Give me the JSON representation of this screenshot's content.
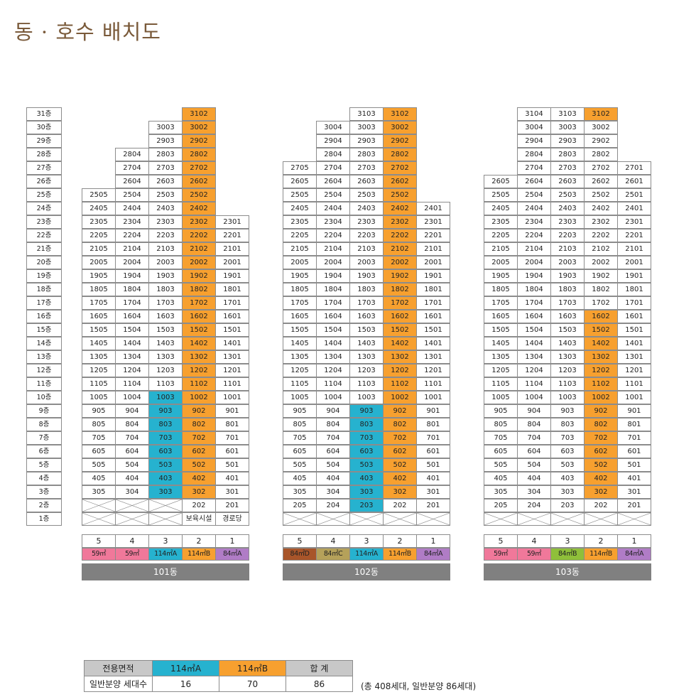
{
  "title": "동 · 호수 배치도",
  "floors": [
    "31층",
    "30층",
    "29층",
    "28층",
    "27층",
    "26층",
    "25층",
    "24층",
    "23층",
    "22층",
    "21층",
    "20층",
    "19층",
    "18층",
    "17층",
    "16층",
    "15층",
    "14층",
    "13층",
    "12층",
    "11층",
    "10층",
    "9층",
    "8층",
    "7층",
    "6층",
    "5층",
    "4층",
    "3층",
    "2층",
    "1층"
  ],
  "colors": {
    "orange": "#f7a02f",
    "cyan": "#26b2cf",
    "pink": "#f0789a",
    "purple": "#b07cc6",
    "green": "#8fbf3a",
    "brown": "#a8552a",
    "olive": "#b5a15a",
    "gray": "#808080"
  },
  "buildings": [
    {
      "name": "101동",
      "lines": [
        "5",
        "4",
        "3",
        "2",
        "1"
      ],
      "types": [
        "59㎡",
        "59㎡",
        "114㎡A",
        "114㎡B",
        "84㎡A"
      ],
      "type_colors": [
        "pink",
        "pink",
        "cyan",
        "orange",
        "purple"
      ],
      "rows": [
        [
          "",
          "",
          "",
          "3102",
          ""
        ],
        [
          "",
          "",
          "3003",
          "3002",
          ""
        ],
        [
          "",
          "",
          "2903",
          "2902",
          ""
        ],
        [
          "",
          "2804",
          "2803",
          "2802",
          ""
        ],
        [
          "",
          "2704",
          "2703",
          "2702",
          ""
        ],
        [
          "",
          "2604",
          "2603",
          "2602",
          ""
        ],
        [
          "2505",
          "2504",
          "2503",
          "2502",
          ""
        ],
        [
          "2405",
          "2404",
          "2403",
          "2402",
          ""
        ],
        [
          "2305",
          "2304",
          "2303",
          "2302",
          "2301"
        ],
        [
          "2205",
          "2204",
          "2203",
          "2202",
          "2201"
        ],
        [
          "2105",
          "2104",
          "2103",
          "2102",
          "2101"
        ],
        [
          "2005",
          "2004",
          "2003",
          "2002",
          "2001"
        ],
        [
          "1905",
          "1904",
          "1903",
          "1902",
          "1901"
        ],
        [
          "1805",
          "1804",
          "1803",
          "1802",
          "1801"
        ],
        [
          "1705",
          "1704",
          "1703",
          "1702",
          "1701"
        ],
        [
          "1605",
          "1604",
          "1603",
          "1602",
          "1601"
        ],
        [
          "1505",
          "1504",
          "1503",
          "1502",
          "1501"
        ],
        [
          "1405",
          "1404",
          "1403",
          "1402",
          "1401"
        ],
        [
          "1305",
          "1304",
          "1303",
          "1302",
          "1301"
        ],
        [
          "1205",
          "1204",
          "1203",
          "1202",
          "1201"
        ],
        [
          "1105",
          "1104",
          "1103",
          "1102",
          "1101"
        ],
        [
          "1005",
          "1004",
          "1003",
          "1002",
          "1001"
        ],
        [
          "905",
          "904",
          "903",
          "902",
          "901"
        ],
        [
          "805",
          "804",
          "803",
          "802",
          "801"
        ],
        [
          "705",
          "704",
          "703",
          "702",
          "701"
        ],
        [
          "605",
          "604",
          "603",
          "602",
          "601"
        ],
        [
          "505",
          "504",
          "503",
          "502",
          "501"
        ],
        [
          "405",
          "404",
          "403",
          "402",
          "401"
        ],
        [
          "305",
          "304",
          "303",
          "302",
          "301"
        ],
        [
          "X",
          "X",
          "X",
          "202",
          "201"
        ],
        [
          "X",
          "X",
          "X",
          "보육시설",
          "경로당"
        ]
      ],
      "highlights": {
        "orange": {
          "col": 3,
          "from": 0,
          "to": 28
        },
        "cyan": {
          "col": 2,
          "from": 21,
          "to": 28
        }
      }
    },
    {
      "name": "102동",
      "lines": [
        "5",
        "4",
        "3",
        "2",
        "1"
      ],
      "types": [
        "84㎡D",
        "84㎡C",
        "114㎡A",
        "114㎡B",
        "84㎡A"
      ],
      "type_colors": [
        "brown",
        "olive",
        "cyan",
        "orange",
        "purple"
      ],
      "rows": [
        [
          "",
          "",
          "3103",
          "3102",
          ""
        ],
        [
          "",
          "3004",
          "3003",
          "3002",
          ""
        ],
        [
          "",
          "2904",
          "2903",
          "2902",
          ""
        ],
        [
          "",
          "2804",
          "2803",
          "2802",
          ""
        ],
        [
          "2705",
          "2704",
          "2703",
          "2702",
          ""
        ],
        [
          "2605",
          "2604",
          "2603",
          "2602",
          ""
        ],
        [
          "2505",
          "2504",
          "2503",
          "2502",
          ""
        ],
        [
          "2405",
          "2404",
          "2403",
          "2402",
          "2401"
        ],
        [
          "2305",
          "2304",
          "2303",
          "2302",
          "2301"
        ],
        [
          "2205",
          "2204",
          "2203",
          "2202",
          "2201"
        ],
        [
          "2105",
          "2104",
          "2103",
          "2102",
          "2101"
        ],
        [
          "2005",
          "2004",
          "2003",
          "2002",
          "2001"
        ],
        [
          "1905",
          "1904",
          "1903",
          "1902",
          "1901"
        ],
        [
          "1805",
          "1804",
          "1803",
          "1802",
          "1801"
        ],
        [
          "1705",
          "1704",
          "1703",
          "1702",
          "1701"
        ],
        [
          "1605",
          "1604",
          "1603",
          "1602",
          "1601"
        ],
        [
          "1505",
          "1504",
          "1503",
          "1502",
          "1501"
        ],
        [
          "1405",
          "1404",
          "1403",
          "1402",
          "1401"
        ],
        [
          "1305",
          "1304",
          "1303",
          "1302",
          "1301"
        ],
        [
          "1205",
          "1204",
          "1203",
          "1202",
          "1201"
        ],
        [
          "1105",
          "1104",
          "1103",
          "1102",
          "1101"
        ],
        [
          "1005",
          "1004",
          "1003",
          "1002",
          "1001"
        ],
        [
          "905",
          "904",
          "903",
          "902",
          "901"
        ],
        [
          "805",
          "804",
          "803",
          "802",
          "801"
        ],
        [
          "705",
          "704",
          "703",
          "702",
          "701"
        ],
        [
          "605",
          "604",
          "603",
          "602",
          "601"
        ],
        [
          "505",
          "504",
          "503",
          "502",
          "501"
        ],
        [
          "405",
          "404",
          "403",
          "402",
          "401"
        ],
        [
          "305",
          "304",
          "303",
          "302",
          "301"
        ],
        [
          "205",
          "204",
          "203",
          "202",
          "201"
        ],
        [
          "X",
          "X",
          "X",
          "X",
          "X"
        ]
      ],
      "highlights": {
        "orange": {
          "col": 3,
          "from": 0,
          "to": 28
        },
        "cyan": {
          "col": 2,
          "from": 22,
          "to": 29
        }
      }
    },
    {
      "name": "103동",
      "lines": [
        "5",
        "4",
        "3",
        "2",
        "1"
      ],
      "types": [
        "59㎡",
        "59㎡",
        "84㎡B",
        "114㎡B",
        "84㎡A"
      ],
      "type_colors": [
        "pink",
        "pink",
        "green",
        "orange",
        "purple"
      ],
      "rows": [
        [
          "",
          "3104",
          "3103",
          "3102",
          ""
        ],
        [
          "",
          "3004",
          "3003",
          "3002",
          ""
        ],
        [
          "",
          "2904",
          "2903",
          "2902",
          ""
        ],
        [
          "",
          "2804",
          "2803",
          "2802",
          ""
        ],
        [
          "",
          "2704",
          "2703",
          "2702",
          "2701"
        ],
        [
          "2605",
          "2604",
          "2603",
          "2602",
          "2601"
        ],
        [
          "2505",
          "2504",
          "2503",
          "2502",
          "2501"
        ],
        [
          "2405",
          "2404",
          "2403",
          "2402",
          "2401"
        ],
        [
          "2305",
          "2304",
          "2303",
          "2302",
          "2301"
        ],
        [
          "2205",
          "2204",
          "2203",
          "2202",
          "2201"
        ],
        [
          "2105",
          "2104",
          "2103",
          "2102",
          "2101"
        ],
        [
          "2005",
          "2004",
          "2003",
          "2002",
          "2001"
        ],
        [
          "1905",
          "1904",
          "1903",
          "1902",
          "1901"
        ],
        [
          "1805",
          "1804",
          "1803",
          "1802",
          "1801"
        ],
        [
          "1705",
          "1704",
          "1703",
          "1702",
          "1701"
        ],
        [
          "1605",
          "1604",
          "1603",
          "1602",
          "1601"
        ],
        [
          "1505",
          "1504",
          "1503",
          "1502",
          "1501"
        ],
        [
          "1405",
          "1404",
          "1403",
          "1402",
          "1401"
        ],
        [
          "1305",
          "1304",
          "1303",
          "1302",
          "1301"
        ],
        [
          "1205",
          "1204",
          "1203",
          "1202",
          "1201"
        ],
        [
          "1105",
          "1104",
          "1103",
          "1102",
          "1101"
        ],
        [
          "1005",
          "1004",
          "1003",
          "1002",
          "1001"
        ],
        [
          "905",
          "904",
          "903",
          "902",
          "901"
        ],
        [
          "805",
          "804",
          "803",
          "802",
          "801"
        ],
        [
          "705",
          "704",
          "703",
          "702",
          "701"
        ],
        [
          "605",
          "604",
          "603",
          "602",
          "601"
        ],
        [
          "505",
          "504",
          "503",
          "502",
          "501"
        ],
        [
          "405",
          "404",
          "403",
          "402",
          "401"
        ],
        [
          "305",
          "304",
          "303",
          "302",
          "301"
        ],
        [
          "205",
          "204",
          "203",
          "202",
          "201"
        ],
        [
          "X",
          "X",
          "X",
          "X",
          "X"
        ]
      ],
      "highlights": {
        "orange_top": {
          "col": 3,
          "from": 0,
          "to": 0
        },
        "orange": {
          "col": 3,
          "from": 15,
          "to": 28
        }
      }
    }
  ],
  "summary": {
    "headers": [
      "전용면적",
      "114㎡A",
      "114㎡B",
      "합  계"
    ],
    "row_label": "일반분양 세대수",
    "values": [
      "16",
      "70",
      "86"
    ],
    "note": "(총 408세대, 일반분양 86세대)"
  }
}
